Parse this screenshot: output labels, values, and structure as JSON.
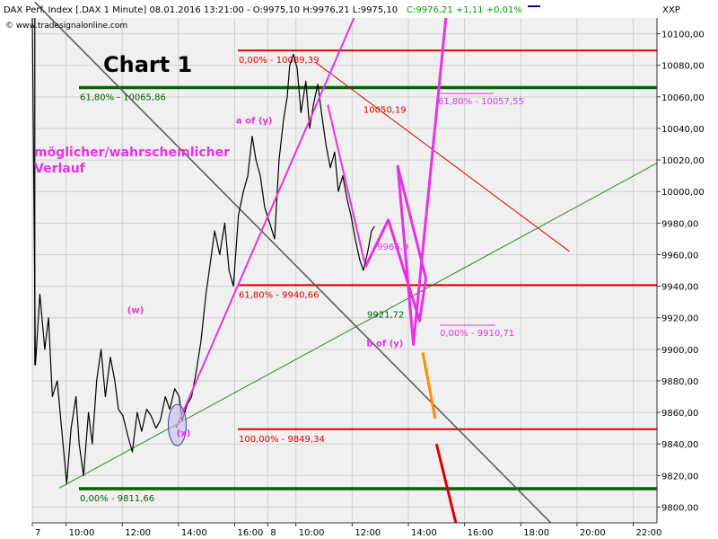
{
  "header": {
    "instrument": "DAX Perf. Index [.DAX  1 Minute] 08.01.2016 13:21:00 - O:9975,10 H:9976,21 L:9975,10",
    "close": "C:9976,21 +1,11 +0,01%",
    "source": "© www.tradesignalonline.com",
    "axis_title": "XXP"
  },
  "chart_title": "Chart 1",
  "note": "möglicher/wahrscheinlicher Verlauf",
  "colors": {
    "price": "#000000",
    "projection": "#e632e6",
    "fib_red": "#dd0000",
    "fib_green": "#006400",
    "channel_grey": "#555555",
    "trend_green": "#2a8a2a",
    "forecast_orange": "#ff8c00",
    "forecast_red": "#dd0000",
    "plot_bg": "#f0f0f0",
    "grid": "#cfcfcf"
  },
  "chart_data": {
    "type": "line",
    "title": "Chart 1",
    "ylim": [
      9790,
      10110
    ],
    "y_ticks": [
      9800,
      9820,
      9840,
      9860,
      9880,
      9900,
      9920,
      9940,
      9960,
      9980,
      10000,
      10020,
      10040,
      10060,
      10080,
      10100
    ],
    "y_tick_labels": [
      "9800,00",
      "9820,00",
      "9840,00",
      "9860,00",
      "9880,00",
      "9900,00",
      "9920,00",
      "9940,00",
      "9960,00",
      "9980,00",
      "10000,00",
      "10020,00",
      "10040,00",
      "10060,00",
      "10080,00",
      "10100,00"
    ],
    "xlim": [
      0,
      100
    ],
    "x_ticks": [
      {
        "x": 0,
        "label": "7"
      },
      {
        "x": 5.4,
        "label": "10:00"
      },
      {
        "x": 14.4,
        "label": "12:00"
      },
      {
        "x": 23.4,
        "label": "14:00"
      },
      {
        "x": 32.4,
        "label": "16:00"
      },
      {
        "x": 37.7,
        "label": "8"
      },
      {
        "x": 42.2,
        "label": "10:00"
      },
      {
        "x": 51.2,
        "label": "12:00"
      },
      {
        "x": 60.2,
        "label": "14:00"
      },
      {
        "x": 69.2,
        "label": "16:00"
      },
      {
        "x": 78.2,
        "label": "18:00"
      },
      {
        "x": 87.2,
        "label": "20:00"
      },
      {
        "x": 96.2,
        "label": "22:00"
      }
    ],
    "price_series": [
      [
        0.0,
        10125
      ],
      [
        0.5,
        9890
      ],
      [
        1.2,
        9935
      ],
      [
        2,
        9900
      ],
      [
        2.6,
        9920
      ],
      [
        3.2,
        9870
      ],
      [
        4,
        9880
      ],
      [
        4.8,
        9845
      ],
      [
        5.5,
        9815
      ],
      [
        6.2,
        9850
      ],
      [
        7,
        9870
      ],
      [
        7.5,
        9840
      ],
      [
        8.2,
        9820
      ],
      [
        9,
        9860
      ],
      [
        9.6,
        9840
      ],
      [
        10.3,
        9880
      ],
      [
        11,
        9900
      ],
      [
        11.7,
        9870
      ],
      [
        12.5,
        9895
      ],
      [
        13.2,
        9880
      ],
      [
        13.8,
        9862
      ],
      [
        14.5,
        9858
      ],
      [
        15.3,
        9845
      ],
      [
        16,
        9835
      ],
      [
        16.8,
        9860
      ],
      [
        17.5,
        9848
      ],
      [
        18.3,
        9862
      ],
      [
        19,
        9858
      ],
      [
        19.8,
        9850
      ],
      [
        20.5,
        9855
      ],
      [
        21.3,
        9870
      ],
      [
        22,
        9862
      ],
      [
        22.8,
        9875
      ],
      [
        23.5,
        9870
      ],
      [
        24,
        9855
      ],
      [
        24.8,
        9865
      ],
      [
        25.5,
        9870
      ],
      [
        26.2,
        9885
      ],
      [
        27,
        9905
      ],
      [
        27.8,
        9935
      ],
      [
        28.5,
        9955
      ],
      [
        29.2,
        9975
      ],
      [
        30,
        9960
      ],
      [
        30.8,
        9980
      ],
      [
        31.5,
        9950
      ],
      [
        32.2,
        9940
      ],
      [
        33,
        9985
      ],
      [
        33.8,
        10000
      ],
      [
        34.5,
        10010
      ],
      [
        35.2,
        10035
      ],
      [
        35.8,
        10020
      ],
      [
        36.5,
        10010
      ],
      [
        37.2,
        9990
      ],
      [
        38,
        9980
      ],
      [
        38.8,
        9970
      ],
      [
        39.5,
        10020
      ],
      [
        40.2,
        10045
      ],
      [
        40.8,
        10060
      ],
      [
        41.2,
        10080
      ],
      [
        41.8,
        10087
      ],
      [
        42.4,
        10078
      ],
      [
        43,
        10050
      ],
      [
        43.8,
        10070
      ],
      [
        44.4,
        10040
      ],
      [
        45,
        10055
      ],
      [
        45.7,
        10068
      ],
      [
        46.3,
        10050
      ],
      [
        47,
        10030
      ],
      [
        47.7,
        10015
      ],
      [
        48.4,
        10025
      ],
      [
        49,
        10000
      ],
      [
        49.7,
        10010
      ],
      [
        50.4,
        9995
      ],
      [
        51,
        9985
      ],
      [
        51.7,
        9970
      ],
      [
        52.4,
        9957
      ],
      [
        53,
        9950
      ],
      [
        53.7,
        9962
      ],
      [
        54.3,
        9975
      ],
      [
        54.8,
        9978
      ]
    ],
    "horizontal_levels": [
      {
        "label": "0,00% - 10089,39",
        "value": 10089.39,
        "color": "red"
      },
      {
        "label": "61,80% - 10065,86",
        "value": 10065.86,
        "color": "green"
      },
      {
        "label": "61,80% - 9940,66",
        "value": 9940.66,
        "color": "red"
      },
      {
        "label": "100,00% - 9849,34",
        "value": 9849.34,
        "color": "red"
      },
      {
        "label": "0,00% - 9811,66",
        "value": 9811.66,
        "color": "green"
      }
    ],
    "short_levels": [
      {
        "label": "61,80% - 10057,55",
        "value": 10057.55
      },
      {
        "label": "0,00% - 9910,71",
        "value": 9910.71
      }
    ],
    "annotations": [
      {
        "text": "a of (y)",
        "x": 32.6,
        "y": 10043
      },
      {
        "text": "(w)",
        "x": 15.2,
        "y": 9923
      },
      {
        "text": "(x)",
        "x": 23.1,
        "y": 9845
      },
      {
        "text": "10050,19",
        "x": 53.0,
        "y": 10050
      },
      {
        "text": "9966,9",
        "x": 55.2,
        "y": 9963
      },
      {
        "text": "9921,72",
        "x": 53.6,
        "y": 9920
      },
      {
        "text": "b of (y)",
        "x": 53.5,
        "y": 9902
      }
    ],
    "projection_path": [
      [
        53.3,
        9952
      ],
      [
        57.0,
        9982
      ],
      [
        62.0,
        9918
      ],
      [
        63.0,
        9945
      ],
      [
        58.5,
        10016
      ],
      [
        61.0,
        9903
      ],
      [
        66.2,
        10135
      ]
    ],
    "projection_lines": [
      [
        [
          23.0,
          9850
        ],
        [
          51.5,
          10120
        ]
      ],
      [
        [
          47.3,
          10055
        ],
        [
          53.2,
          9955
        ]
      ]
    ],
    "channel_line": [
      [
        0.4,
        10120
      ],
      [
        83.0,
        9790
      ]
    ],
    "red_trend_line": [
      [
        45.3,
        10082
      ],
      [
        86.0,
        9962
      ]
    ],
    "green_trend_line": [
      [
        4.3,
        9812
      ],
      [
        100,
        10018
      ]
    ],
    "forecast_orange": [
      [
        62.5,
        9898
      ],
      [
        64.5,
        9856
      ]
    ],
    "forecast_red": [
      [
        64.7,
        9840
      ],
      [
        67.8,
        9784
      ]
    ],
    "ellipse": {
      "x": 23.2,
      "y": 9852
    }
  }
}
